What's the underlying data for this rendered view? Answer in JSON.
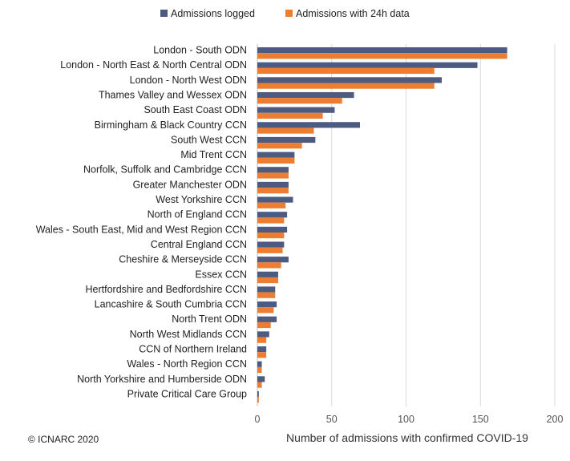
{
  "chart_data": {
    "type": "bar",
    "orientation": "horizontal",
    "categories": [
      "London - South ODN",
      "London - North East & North Central ODN",
      "London - North West ODN",
      "Thames Valley and Wessex ODN",
      "South East Coast ODN",
      "Birmingham & Black Country CCN",
      "South West CCN",
      "Mid Trent CCN",
      "Norfolk, Suffolk and Cambridge CCN",
      "Greater Manchester ODN",
      "West Yorkshire CCN",
      "North of England CCN",
      "Wales - South East, Mid and West Region CCN",
      "Central England CCN",
      "Cheshire & Merseyside CCN",
      "Essex CCN",
      "Hertfordshire and Bedfordshire CCN",
      "Lancashire & South Cumbria CCN",
      "North Trent ODN",
      "North West Midlands CCN",
      "CCN of Northern Ireland",
      "Wales - North Region CCN",
      "North Yorkshire and Humberside ODN",
      "Private Critical Care Group"
    ],
    "series": [
      {
        "name": "Admissions logged",
        "color": "#4e5b80",
        "values": [
          168,
          148,
          124,
          65,
          52,
          69,
          39,
          25,
          21,
          21,
          24,
          20,
          20,
          18,
          21,
          14,
          12,
          13,
          13,
          8,
          6,
          3,
          5,
          1
        ]
      },
      {
        "name": "Admissions with 24h data",
        "color": "#ed7d31",
        "values": [
          168,
          119,
          119,
          57,
          44,
          38,
          30,
          25,
          21,
          21,
          19,
          18,
          18,
          17,
          16,
          14,
          12,
          11,
          9,
          6,
          6,
          3,
          3,
          1
        ]
      }
    ],
    "xlabel": "Number of admissions with confirmed COVID-19",
    "xlim": [
      0,
      200
    ],
    "xticks": [
      0,
      50,
      100,
      150,
      200
    ],
    "grid": "vertical",
    "legend": "top-center"
  },
  "copyright": "© ICNARC 2020"
}
